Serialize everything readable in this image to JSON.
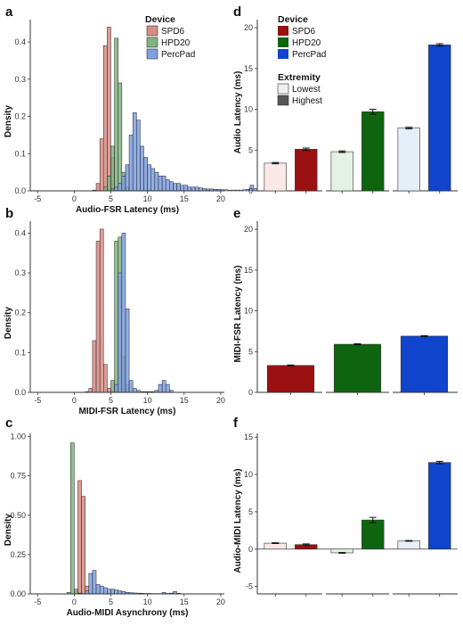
{
  "legend_device": {
    "title": "Device",
    "items": [
      {
        "label": "SPD6",
        "hist_color": "#d88c84",
        "bar_color": "#9b1010"
      },
      {
        "label": "HPD20",
        "hist_color": "#7fb47f",
        "bar_color": "#0f650f"
      },
      {
        "label": "PercPad",
        "hist_color": "#7f9fe0",
        "bar_color": "#1144cc"
      }
    ]
  },
  "legend_extremity": {
    "title": "Extremity",
    "items": [
      {
        "label": "Lowest",
        "color": "#f0f0f0"
      },
      {
        "label": "Highest",
        "color": "#555555"
      }
    ]
  },
  "chart_data": [
    {
      "panel": "a",
      "type": "bar",
      "subtype": "histogram",
      "xlabel": "Audio-FSR Latency (ms)",
      "ylabel": "Density",
      "xlim": [
        -6,
        20.5
      ],
      "ylim": [
        0,
        0.46
      ],
      "xticks": [
        "-5",
        "0",
        "5",
        "10",
        "15",
        "20"
      ],
      "yticks": [
        "0.0",
        "0.1",
        "0.2",
        "0.3",
        "0.4"
      ],
      "bin_width": 0.5,
      "bin_start": 0,
      "series": [
        {
          "name": "SPD6",
          "values": [
            0,
            0,
            0,
            0,
            0,
            0.002,
            0.02,
            0.14,
            0.39,
            0.44,
            0.09,
            0.01
          ]
        },
        {
          "name": "HPD20",
          "values": [
            0,
            0,
            0,
            0,
            0,
            0,
            0,
            0,
            0.01,
            0.04,
            0.12,
            0.41,
            0.29,
            0.05,
            0.01
          ]
        },
        {
          "name": "PercPad",
          "values": [
            0,
            0,
            0,
            0,
            0,
            0,
            0,
            0,
            0,
            0,
            0.005,
            0.01,
            0.02,
            0.04,
            0.07,
            0.15,
            0.21,
            0.19,
            0.12,
            0.09,
            0.07,
            0.06,
            0.05,
            0.04,
            0.04,
            0.03,
            0.025,
            0.02,
            0.02,
            0.015,
            0.015,
            0.01,
            0.01,
            0.01,
            0.008,
            0.006,
            0.005,
            0.005,
            0.004,
            0.004,
            0.003,
            0.003,
            0.002,
            0.002,
            0.002,
            0.002,
            0.003,
            0.004,
            0.015,
            0.006
          ]
        }
      ]
    },
    {
      "panel": "b",
      "type": "bar",
      "subtype": "histogram",
      "xlabel": "MIDI-FSR Latency (ms)",
      "ylabel": "Density",
      "xlim": [
        -6,
        20.5
      ],
      "ylim": [
        0,
        0.43
      ],
      "xticks": [
        "-5",
        "0",
        "5",
        "10",
        "15",
        "20"
      ],
      "yticks": [
        "0.0",
        "0.1",
        "0.2",
        "0.3",
        "0.4"
      ],
      "bin_width": 0.5,
      "bin_start": 0,
      "series": [
        {
          "name": "SPD6",
          "values": [
            0,
            0,
            0,
            0.002,
            0.01,
            0.13,
            0.38,
            0.41,
            0.07,
            0.01,
            0.002
          ]
        },
        {
          "name": "HPD20",
          "values": [
            0,
            0,
            0,
            0,
            0,
            0,
            0,
            0,
            0,
            0,
            0.03,
            0.38,
            0.39,
            0.09,
            0.02
          ]
        },
        {
          "name": "PercPad",
          "values": [
            0,
            0,
            0,
            0,
            0,
            0,
            0,
            0,
            0,
            0,
            0,
            0.02,
            0.3,
            0.4,
            0.21,
            0.03,
            0.01,
            0.005,
            0.002,
            0.002,
            0.002,
            0.002,
            0.005,
            0.02,
            0.03,
            0.02,
            0.005
          ]
        }
      ]
    },
    {
      "panel": "c",
      "type": "bar",
      "subtype": "histogram",
      "xlabel": "Audio-MIDI Asynchrony (ms)",
      "ylabel": "Density",
      "xlim": [
        -6,
        20.5
      ],
      "ylim": [
        0,
        1.02
      ],
      "xticks": [
        "-5",
        "0",
        "5",
        "10",
        "15",
        "20"
      ],
      "yticks": [
        "0.00",
        "0.25",
        "0.50",
        "0.75",
        "1.00"
      ],
      "bin_width": 0.5,
      "bin_start": -1,
      "series": [
        {
          "name": "SPD6",
          "values": [
            0,
            0,
            0.02,
            0.72,
            0.62,
            0.05,
            0.005
          ]
        },
        {
          "name": "HPD20",
          "values": [
            0.01,
            0.96,
            0.03,
            0.005,
            0.002
          ]
        },
        {
          "name": "PercPad",
          "values": [
            0,
            0,
            0,
            0,
            0,
            0.02,
            0.13,
            0.15,
            0.06,
            0.05,
            0.04,
            0.03,
            0.03,
            0.025,
            0.02,
            0.015,
            0.01,
            0.008,
            0.006,
            0.005,
            0.004,
            0.003,
            0.003,
            0.002,
            0.002,
            0.002,
            0.01,
            0.003,
            0.005,
            0.015,
            0.004
          ]
        }
      ]
    },
    {
      "panel": "d",
      "type": "bar",
      "xlabel": "",
      "ylabel": "Audio Latency (ms)",
      "ylim": [
        0,
        21
      ],
      "yticks": [
        "0",
        "5",
        "10",
        "15",
        "20"
      ],
      "categories": [
        "SPD6",
        "HPD20",
        "PercPad"
      ],
      "series": [
        {
          "name": "Lowest",
          "values": [
            3.4,
            4.8,
            7.7
          ],
          "errors": [
            0.08,
            0.1,
            0.1
          ]
        },
        {
          "name": "Highest",
          "values": [
            5.1,
            9.7,
            17.9
          ],
          "errors": [
            0.15,
            0.3,
            0.15
          ]
        }
      ]
    },
    {
      "panel": "e",
      "type": "bar",
      "xlabel": "",
      "ylabel": "MIDI-FSR Latency (ms)",
      "ylim": [
        0,
        21
      ],
      "yticks": [
        "0",
        "5",
        "10",
        "15",
        "20"
      ],
      "categories": [
        "SPD6",
        "HPD20",
        "PercPad"
      ],
      "series": [
        {
          "name": "MIDI-FSR",
          "values": [
            3.3,
            5.9,
            6.9
          ],
          "errors": [
            0.06,
            0.06,
            0.06
          ]
        }
      ]
    },
    {
      "panel": "f",
      "type": "bar",
      "xlabel": "",
      "ylabel": "Audio-MIDI Latency (ms)",
      "ylim": [
        -6,
        15.5
      ],
      "yticks": [
        "-5",
        "0",
        "5",
        "10",
        "15"
      ],
      "categories": [
        "SPD6",
        "HPD20",
        "PercPad"
      ],
      "series": [
        {
          "name": "Lowest",
          "values": [
            0.8,
            -0.5,
            1.1
          ],
          "errors": [
            0.05,
            0.05,
            0.05
          ]
        },
        {
          "name": "Highest",
          "values": [
            0.6,
            3.9,
            11.6
          ],
          "errors": [
            0.1,
            0.35,
            0.15
          ]
        }
      ]
    }
  ]
}
